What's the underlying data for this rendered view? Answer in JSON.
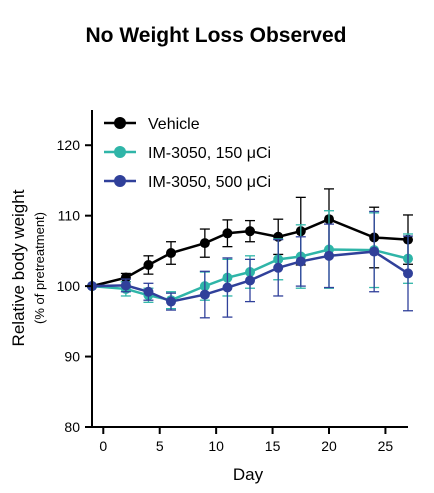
{
  "chart_data": {
    "type": "line",
    "title": "No Weight Loss Observed",
    "xlabel": "Day",
    "ylabel": "Relative body weight",
    "ylabel_sub": "(% of pretreatment)",
    "xlim": [
      -1,
      27
    ],
    "ylim": [
      80,
      125
    ],
    "xticks": [
      0,
      5,
      10,
      15,
      20,
      25
    ],
    "yticks": [
      80,
      90,
      100,
      110,
      120
    ],
    "legend_position": "top-left",
    "grid": false,
    "series": [
      {
        "name": "Vehicle",
        "color": "#000000",
        "x": [
          -1,
          2,
          4,
          6,
          9,
          11,
          13,
          15.5,
          17.5,
          20,
          24,
          27
        ],
        "y": [
          100,
          101.2,
          103,
          104.7,
          106.1,
          107.5,
          107.8,
          107,
          107.8,
          109.5,
          106.9,
          106.6
        ],
        "err": [
          0,
          0.6,
          1.3,
          1.6,
          2.0,
          1.9,
          1.5,
          2.5,
          4.8,
          4.3,
          4.3,
          3.5
        ]
      },
      {
        "name": "IM-3050, 150 μCi",
        "color": "#2fb5a8",
        "x": [
          -1,
          2,
          4,
          6,
          9,
          11,
          13,
          15.5,
          17.5,
          20,
          24,
          27
        ],
        "y": [
          100,
          99.6,
          98.7,
          98.0,
          100,
          101.2,
          102,
          103.8,
          104.2,
          105.2,
          105.1,
          103.9
        ],
        "err": [
          0,
          1.0,
          1.0,
          1.2,
          2.0,
          2.6,
          2.3,
          2.9,
          4.5,
          5.5,
          5.3,
          3.5
        ]
      },
      {
        "name": "IM-3050, 500 μCi",
        "color": "#30409a",
        "x": [
          -1,
          2,
          4,
          6,
          9,
          11,
          13,
          15.5,
          17.5,
          20,
          24,
          27
        ],
        "y": [
          100,
          100.1,
          99.2,
          97.8,
          98.8,
          99.8,
          100.8,
          102.6,
          103.5,
          104.3,
          104.9,
          101.8
        ],
        "err": [
          0,
          0.9,
          1.2,
          1.2,
          3.3,
          4.2,
          3.0,
          4.0,
          3.5,
          4.5,
          5.7,
          5.3
        ]
      }
    ]
  }
}
